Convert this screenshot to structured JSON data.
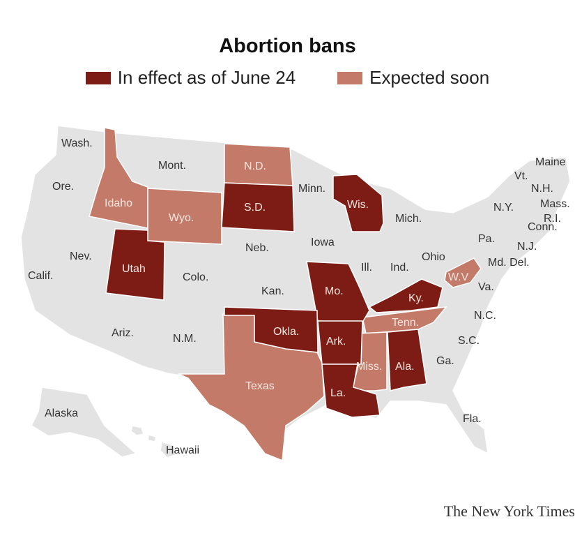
{
  "title": "Abortion bans",
  "legend": [
    {
      "label": "In effect as of June 24",
      "color": "#7c1c14"
    },
    {
      "label": "Expected soon",
      "color": "#c47a68"
    }
  ],
  "colors": {
    "in_effect": "#7c1c14",
    "expected": "#c47a68",
    "no_ban": "#e3e3e3",
    "border": "#ffffff"
  },
  "states": {
    "in_effect": [
      "S.D.",
      "Wis.",
      "Utah",
      "Mo.",
      "Ky.",
      "Okla.",
      "Ark.",
      "Ala.",
      "La."
    ],
    "expected": [
      "N.D.",
      "Idaho",
      "Wyo.",
      "W.V",
      "Tenn.",
      "Texas",
      "Miss."
    ]
  },
  "labels": {
    "wash": "Wash.",
    "ore": "Ore.",
    "calif": "Calif.",
    "nev": "Nev.",
    "idaho": "Idaho",
    "mont": "Mont.",
    "wyo": "Wyo.",
    "utah": "Utah",
    "colo": "Colo.",
    "ariz": "Ariz.",
    "nm": "N.M.",
    "nd": "N.D.",
    "sd": "S.D.",
    "neb": "Neb.",
    "kan": "Kan.",
    "okla": "Okla.",
    "texas": "Texas",
    "minn": "Minn.",
    "iowa": "Iowa",
    "mo": "Mo.",
    "ark": "Ark.",
    "la": "La.",
    "wis": "Wis.",
    "ill": "Ill.",
    "mich": "Mich.",
    "ind": "Ind.",
    "ohio": "Ohio",
    "ky": "Ky.",
    "tenn": "Tenn.",
    "miss": "Miss.",
    "ala": "Ala.",
    "ga": "Ga.",
    "fla": "Fla.",
    "sc": "S.C.",
    "nc": "N.C.",
    "va": "Va.",
    "wv": "W.V",
    "pa": "Pa.",
    "ny": "N.Y.",
    "nj": "N.J.",
    "md_del": "Md. Del.",
    "conn": "Conn.",
    "ri": "R.I.",
    "mass": "Mass.",
    "vt": "Vt.",
    "nh": "N.H.",
    "maine": "Maine",
    "alaska": "Alaska",
    "hawaii": "Hawaii"
  },
  "credit": "The New York Times"
}
